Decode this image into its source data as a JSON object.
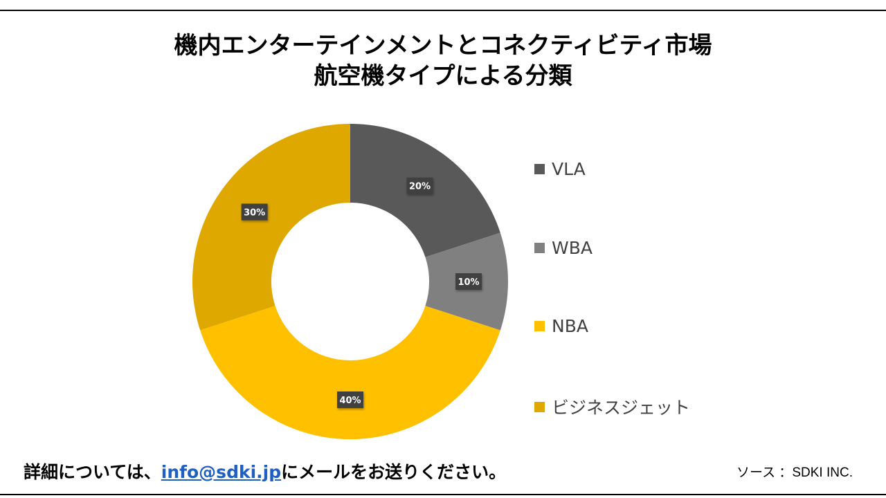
{
  "title": {
    "line1": "機内エンターテインメントとコネクティビティ市場",
    "line2": "航空機タイプによる分類"
  },
  "chart_data": {
    "type": "pie",
    "variant": "donut",
    "title": "機内エンターテインメントとコネクティビティ市場 航空機タイプによる分類",
    "categories": [
      "VLA",
      "WBA",
      "NBA",
      "ビジネスジェット"
    ],
    "values": [
      20,
      10,
      40,
      30
    ],
    "labels": [
      "20%",
      "10%",
      "40%",
      "30%"
    ],
    "colors": [
      "#595959",
      "#808080",
      "#ffc000",
      "#dfa800"
    ],
    "legend_position": "right"
  },
  "footer": {
    "prefix": "詳細については、",
    "email": "info@sdki.jp",
    "suffix": "にメールをお送りください。",
    "source": "ソース ：SDKI INC."
  }
}
